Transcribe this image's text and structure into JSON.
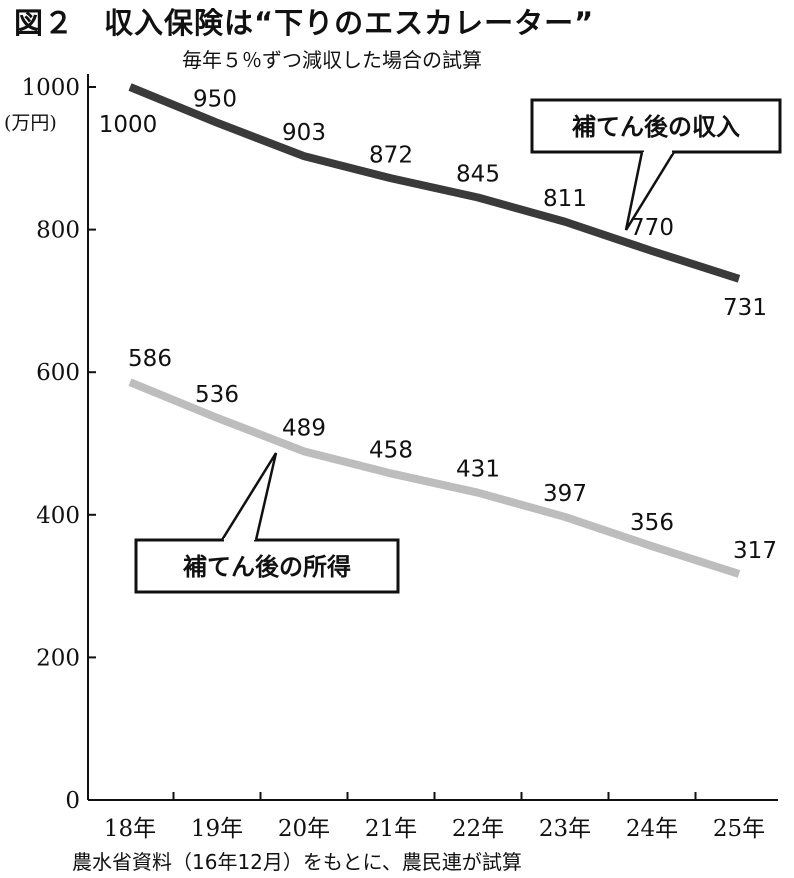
{
  "title": {
    "figure": "図２",
    "text": "収入保険は“下りのエスカレーター”"
  },
  "subtitle": "毎年５％ずつ減収した場合の試算",
  "unit_label": "(万円)",
  "source": "農水省資料（16年12月）をもとに、農民連が試算",
  "colors": {
    "income_line": "#3a3a3a",
    "earnings_line": "#bdbdbd",
    "axis": "#111111"
  },
  "chart_data": {
    "type": "line",
    "title": "収入保険は“下りのエスカレーター”",
    "subtitle": "毎年５％ずつ減収した場合の試算",
    "xlabel": "",
    "ylabel": "(万円)",
    "categories": [
      "18年",
      "19年",
      "20年",
      "21年",
      "22年",
      "23年",
      "24年",
      "25年"
    ],
    "ylim": [
      0,
      1000
    ],
    "yticks": [
      0,
      200,
      400,
      600,
      800,
      1000
    ],
    "grid": false,
    "series": [
      {
        "name": "補てん後の収入",
        "values": [
          1000,
          950,
          903,
          872,
          845,
          811,
          770,
          731
        ]
      },
      {
        "name": "補てん後の所得",
        "values": [
          586,
          536,
          489,
          458,
          431,
          397,
          356,
          317
        ]
      }
    ]
  }
}
